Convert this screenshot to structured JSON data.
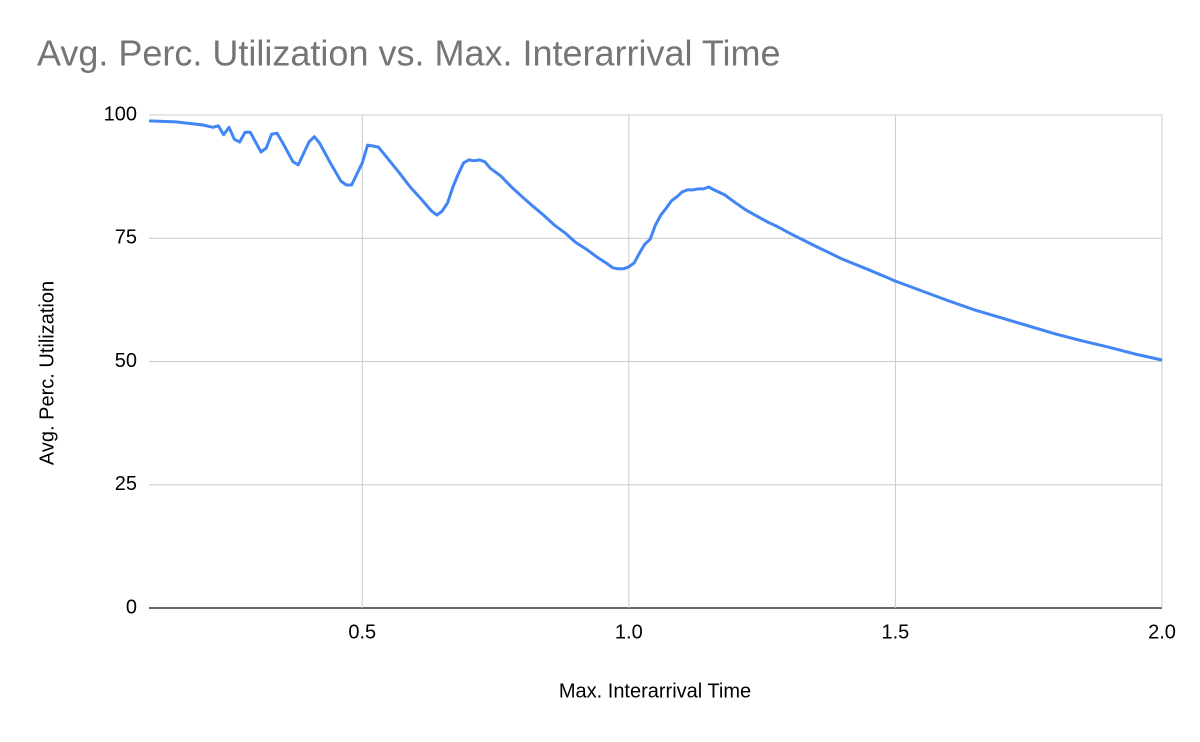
{
  "chart_data": {
    "type": "line",
    "title": "Avg. Perc. Utilization vs. Max. Interarrival Time",
    "x_label": "Max. Interarrival Time",
    "y_label": "Avg. Perc. Utilization",
    "x": [
      0.1,
      0.15,
      0.2,
      0.22,
      0.23,
      0.24,
      0.25,
      0.26,
      0.27,
      0.28,
      0.29,
      0.31,
      0.32,
      0.33,
      0.34,
      0.35,
      0.37,
      0.38,
      0.4,
      0.41,
      0.42,
      0.44,
      0.46,
      0.47,
      0.48,
      0.5,
      0.51,
      0.53,
      0.55,
      0.57,
      0.59,
      0.61,
      0.63,
      0.64,
      0.65,
      0.66,
      0.67,
      0.68,
      0.69,
      0.7,
      0.71,
      0.72,
      0.73,
      0.74,
      0.76,
      0.78,
      0.8,
      0.82,
      0.84,
      0.86,
      0.88,
      0.9,
      0.92,
      0.94,
      0.96,
      0.97,
      0.98,
      0.99,
      1.0,
      1.01,
      1.02,
      1.03,
      1.04,
      1.05,
      1.06,
      1.07,
      1.08,
      1.09,
      1.1,
      1.11,
      1.12,
      1.13,
      1.14,
      1.15,
      1.16,
      1.18,
      1.2,
      1.22,
      1.24,
      1.26,
      1.28,
      1.3,
      1.35,
      1.4,
      1.45,
      1.5,
      1.55,
      1.6,
      1.65,
      1.7,
      1.75,
      1.8,
      1.85,
      1.9,
      1.95,
      2.0
    ],
    "values": [
      98.8,
      98.6,
      98.0,
      97.5,
      97.8,
      96.0,
      97.5,
      95.1,
      94.5,
      96.5,
      96.5,
      92.5,
      93.3,
      96.1,
      96.3,
      94.5,
      90.5,
      89.9,
      94.5,
      95.6,
      94.3,
      90.3,
      86.6,
      85.8,
      85.8,
      90.3,
      93.9,
      93.5,
      90.9,
      88.2,
      85.4,
      83.0,
      80.5,
      79.7,
      80.5,
      82.2,
      85.4,
      88.0,
      90.3,
      90.9,
      90.7,
      90.9,
      90.5,
      89.2,
      87.6,
      85.4,
      83.4,
      81.5,
      79.7,
      77.7,
      76.1,
      74.2,
      72.8,
      71.2,
      69.8,
      69.0,
      68.8,
      68.8,
      69.2,
      70.0,
      72.0,
      73.8,
      74.8,
      77.7,
      79.7,
      81.1,
      82.6,
      83.4,
      84.4,
      84.8,
      84.8,
      85.0,
      85.0,
      85.4,
      84.8,
      83.8,
      82.2,
      80.7,
      79.5,
      78.3,
      77.3,
      76.1,
      73.4,
      70.8,
      68.6,
      66.3,
      64.3,
      62.3,
      60.4,
      58.8,
      57.2,
      55.6,
      54.2,
      52.9,
      51.5,
      50.3
    ],
    "color": "#4285f4",
    "xlim": [
      0.1,
      2.0
    ],
    "xticks": [
      0.5,
      {
        "value": 1,
        "label": "1.0"
      },
      1.5,
      {
        "value": 2,
        "label": "2.0"
      }
    ],
    "ylim": [
      0,
      100
    ],
    "yticks": [
      0,
      25,
      50,
      75,
      100
    ],
    "grid": true
  }
}
